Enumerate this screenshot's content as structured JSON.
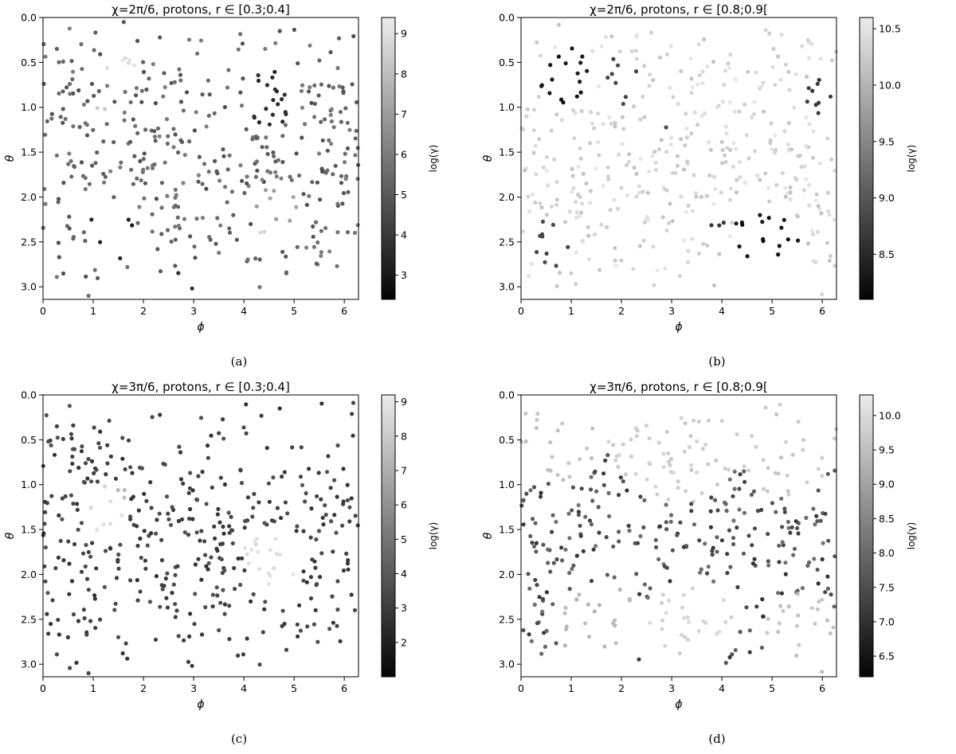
{
  "chart_data": [
    {
      "type": "scatter",
      "caption": "(a)",
      "title": "χ=2π/6, protons, r ∈ [0.3;0.4]",
      "xlabel": "ϕ",
      "ylabel": "θ",
      "xlim": [
        0,
        6.283
      ],
      "ylim": [
        3.14,
        0.0
      ],
      "y_inverted": true,
      "xticks": [
        0,
        1,
        2,
        3,
        4,
        5,
        6
      ],
      "yticks": [
        0.0,
        0.5,
        1.0,
        1.5,
        2.0,
        2.5,
        3.0
      ],
      "colorbar": {
        "label": "log(γ)",
        "min": 2.4,
        "max": 9.4,
        "ticks": [
          3,
          4,
          5,
          6,
          7,
          8,
          9
        ],
        "colormap": "gray"
      },
      "seed": 11,
      "base_range": [
        4.6,
        6.2
      ],
      "features": [
        {
          "x": 1.6,
          "y": 0.6,
          "r": 0.35,
          "value": 9.0
        },
        {
          "x": 1.1,
          "y": 1.02,
          "r": 0.18,
          "value": 8.6
        },
        {
          "x": 4.55,
          "y": 2.45,
          "r": 0.3,
          "value": 8.8
        },
        {
          "x": 4.6,
          "y": 2.1,
          "r": 0.45,
          "value": 7.2
        },
        {
          "x": 1.4,
          "y": 2.45,
          "r": 0.55,
          "value": 3.3
        },
        {
          "x": 2.7,
          "y": 2.95,
          "r": 0.3,
          "value": 3.8
        },
        {
          "x": 4.5,
          "y": 0.9,
          "r": 0.55,
          "value": 3.6
        }
      ]
    },
    {
      "type": "scatter",
      "caption": "(b)",
      "title": "χ=2π/6, protons, r ∈ [0.8;0.9[",
      "xlabel": "ϕ",
      "ylabel": "θ",
      "xlim": [
        0,
        6.283
      ],
      "ylim": [
        3.14,
        0.0
      ],
      "y_inverted": true,
      "xticks": [
        0,
        1,
        2,
        3,
        4,
        5,
        6
      ],
      "yticks": [
        0.0,
        0.5,
        1.0,
        1.5,
        2.0,
        2.5,
        3.0
      ],
      "colorbar": {
        "label": "log(γ)",
        "min": 8.1,
        "max": 10.6,
        "ticks": [
          8.5,
          9.0,
          9.5,
          10.0,
          10.5
        ],
        "colormap": "gray"
      },
      "seed": 23,
      "base_range": [
        10.15,
        10.55
      ],
      "features": [
        {
          "x": 0.9,
          "y": 0.65,
          "r": 0.55,
          "value": 8.3
        },
        {
          "x": 2.0,
          "y": 0.7,
          "r": 0.45,
          "value": 8.8
        },
        {
          "x": 4.9,
          "y": 2.5,
          "r": 0.7,
          "value": 8.25
        },
        {
          "x": 0.6,
          "y": 2.5,
          "r": 0.45,
          "value": 8.8
        },
        {
          "x": 3.8,
          "y": 2.3,
          "r": 0.35,
          "value": 8.6
        },
        {
          "x": 6.0,
          "y": 0.9,
          "r": 0.35,
          "value": 8.7
        },
        {
          "x": 2.9,
          "y": 1.1,
          "r": 0.3,
          "value": 8.9
        }
      ]
    },
    {
      "type": "scatter",
      "caption": "(c)",
      "title": "χ=3π/6, protons, r ∈ [0.3;0.4]",
      "xlabel": "ϕ",
      "ylabel": "θ",
      "xlim": [
        0,
        6.283
      ],
      "ylim": [
        3.14,
        0.0
      ],
      "y_inverted": true,
      "xticks": [
        0,
        1,
        2,
        3,
        4,
        5,
        6
      ],
      "yticks": [
        0.0,
        0.5,
        1.0,
        1.5,
        2.0,
        2.5,
        3.0
      ],
      "colorbar": {
        "label": "log(γ)",
        "min": 1.0,
        "max": 9.2,
        "ticks": [
          2,
          3,
          4,
          5,
          6,
          7,
          8,
          9
        ],
        "colormap": "gray"
      },
      "seed": 11,
      "base_range": [
        2.6,
        3.8
      ],
      "features": [
        {
          "x": 1.2,
          "y": 1.3,
          "r": 0.45,
          "value": 8.6
        },
        {
          "x": 4.55,
          "y": 1.8,
          "r": 0.55,
          "value": 8.7
        },
        {
          "x": 1.5,
          "y": 1.1,
          "r": 0.2,
          "value": 7.6
        }
      ]
    },
    {
      "type": "scatter",
      "caption": "(d)",
      "title": "χ=3π/6, protons, r ∈ [0.8;0.9[",
      "xlabel": "ϕ",
      "ylabel": "θ",
      "xlim": [
        0,
        6.283
      ],
      "ylim": [
        3.14,
        0.0
      ],
      "y_inverted": true,
      "xticks": [
        0,
        1,
        2,
        3,
        4,
        5,
        6
      ],
      "yticks": [
        0.0,
        0.5,
        1.0,
        1.5,
        2.0,
        2.5,
        3.0
      ],
      "colorbar": {
        "label": "log(γ)",
        "min": 6.2,
        "max": 10.3,
        "ticks": [
          6.5,
          7.0,
          7.5,
          8.0,
          8.5,
          9.0,
          9.5,
          10.0
        ],
        "colormap": "gray"
      },
      "seed": 23,
      "base_range": [
        7.0,
        8.2
      ],
      "features": [
        {
          "x": 3.1,
          "y": 0.35,
          "r": 1.4,
          "value": 9.8
        },
        {
          "x": 0.8,
          "y": 0.4,
          "r": 0.9,
          "value": 9.6
        },
        {
          "x": 5.3,
          "y": 0.5,
          "r": 1.0,
          "value": 9.7
        },
        {
          "x": 3.4,
          "y": 2.6,
          "r": 0.9,
          "value": 9.9
        },
        {
          "x": 1.6,
          "y": 2.6,
          "r": 0.8,
          "value": 9.4
        },
        {
          "x": 5.6,
          "y": 2.7,
          "r": 0.8,
          "value": 9.6
        }
      ]
    }
  ]
}
